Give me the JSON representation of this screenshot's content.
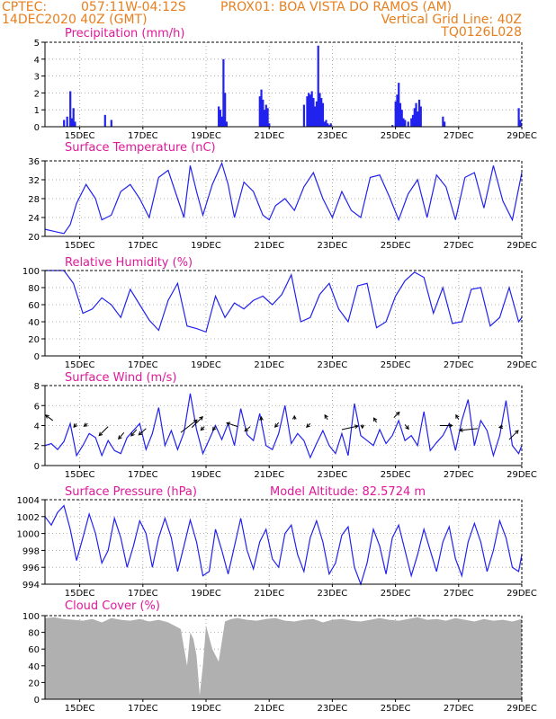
{
  "header": {
    "source": "CPTEC:",
    "coords": "057:11W-04:12S",
    "station": "PROX01: BOA VISTA DO RAMOS (AM)",
    "date": "14DEC2020 40Z (GMT)",
    "grid_note": "Vertical Grid Line: 40Z",
    "run_id": "TQ0126L028"
  },
  "colors": {
    "header": "#e87f1e",
    "title": "#e0189a",
    "line": "#2222ee",
    "bar": "#2222ee",
    "cloud": "#b0b0b0",
    "arrow": "#000000"
  },
  "chart_data": [
    {
      "type": "bar",
      "title": "Precipitation (mm/h)",
      "ylim": [
        0,
        5
      ],
      "yticks": [
        "0",
        "1",
        "2",
        "3",
        "4",
        "5"
      ],
      "x_tick_labels": [
        "15DEC",
        "17DEC",
        "19DEC",
        "21DEC",
        "23DEC",
        "25DEC",
        "27DEC",
        "29DEC"
      ],
      "x_tick_days": [
        15,
        17,
        19,
        21,
        23,
        25,
        27,
        29
      ],
      "x": [
        14.5,
        14.6,
        14.7,
        14.75,
        14.8,
        14.85,
        15.8,
        16.0,
        19.4,
        19.45,
        19.5,
        19.55,
        19.6,
        19.65,
        20.7,
        20.75,
        20.8,
        20.85,
        20.9,
        20.95,
        21.0,
        22.1,
        22.2,
        22.25,
        22.3,
        22.35,
        22.4,
        22.45,
        22.5,
        22.55,
        22.6,
        22.65,
        22.7,
        22.75,
        22.8,
        22.85,
        22.9,
        22.95,
        24.9,
        25.0,
        25.05,
        25.1,
        25.15,
        25.2,
        25.25,
        25.3,
        25.4,
        25.5,
        25.55,
        25.6,
        25.65,
        25.7,
        25.75,
        25.8,
        26.5,
        26.55,
        28.9,
        28.95
      ],
      "values": [
        0.4,
        0.6,
        2.1,
        0.5,
        1.1,
        0.3,
        0.7,
        0.4,
        1.2,
        1.0,
        0.6,
        4.0,
        2.0,
        0.3,
        1.8,
        2.2,
        1.6,
        1.0,
        1.3,
        1.1,
        0.2,
        1.3,
        1.8,
        2.0,
        1.9,
        2.1,
        1.7,
        1.2,
        1.5,
        4.8,
        2.0,
        1.7,
        1.4,
        0.3,
        0.4,
        0.2,
        0.1,
        0.2,
        0.1,
        1.5,
        1.9,
        2.6,
        1.4,
        1.0,
        0.5,
        0.4,
        0.3,
        0.5,
        0.7,
        1.1,
        1.4,
        0.9,
        1.6,
        1.2,
        0.6,
        0.3,
        1.1,
        0.4
      ]
    },
    {
      "type": "line",
      "title": "Surface Temperature (nC)",
      "ylim": [
        20,
        36
      ],
      "yticks": [
        "20",
        "24",
        "28",
        "32",
        "36"
      ],
      "x_tick_labels": [
        "15DEC",
        "17DEC",
        "19DEC",
        "21DEC",
        "23DEC",
        "25DEC",
        "27DEC",
        "29DEC"
      ],
      "x_tick_days": [
        15,
        17,
        19,
        21,
        23,
        25,
        27,
        29
      ],
      "x": [
        13.9,
        14.1,
        14.3,
        14.5,
        14.7,
        14.9,
        15.2,
        15.5,
        15.7,
        16.0,
        16.3,
        16.6,
        16.9,
        17.2,
        17.5,
        17.8,
        18.1,
        18.3,
        18.5,
        18.7,
        18.9,
        19.2,
        19.5,
        19.7,
        19.9,
        20.2,
        20.5,
        20.8,
        21.0,
        21.2,
        21.5,
        21.8,
        22.1,
        22.4,
        22.7,
        23.0,
        23.3,
        23.6,
        23.9,
        24.2,
        24.5,
        24.8,
        25.1,
        25.4,
        25.7,
        26.0,
        26.3,
        26.6,
        26.9,
        27.2,
        27.5,
        27.8,
        28.1,
        28.4,
        28.7,
        29.0
      ],
      "values": [
        21.5,
        21.2,
        20.9,
        20.6,
        22.5,
        27.0,
        31.0,
        28.0,
        23.5,
        24.5,
        29.5,
        31.0,
        28.0,
        24.0,
        32.5,
        34.0,
        28.0,
        24.0,
        35.0,
        29.5,
        24.5,
        31.0,
        35.5,
        31.0,
        24.0,
        31.5,
        29.5,
        24.5,
        23.5,
        26.5,
        28.0,
        25.5,
        30.5,
        33.5,
        28.0,
        24.0,
        29.5,
        25.5,
        24.0,
        32.5,
        33.0,
        28.5,
        23.5,
        29.0,
        32.0,
        24.0,
        33.0,
        30.5,
        23.5,
        32.5,
        33.5,
        26.0,
        35.0,
        27.5,
        23.5,
        33.5
      ]
    },
    {
      "type": "line",
      "title": "Relative Humidity (%)",
      "ylim": [
        0,
        100
      ],
      "yticks": [
        "0",
        "20",
        "40",
        "60",
        "80",
        "100"
      ],
      "x_tick_labels": [
        "15DEC",
        "17DEC",
        "19DEC",
        "21DEC",
        "23DEC",
        "25DEC",
        "27DEC",
        "29DEC"
      ],
      "x_tick_days": [
        15,
        17,
        19,
        21,
        23,
        25,
        27,
        29
      ],
      "x": [
        13.9,
        14.2,
        14.5,
        14.8,
        15.1,
        15.4,
        15.7,
        16.0,
        16.3,
        16.6,
        16.9,
        17.2,
        17.5,
        17.8,
        18.1,
        18.4,
        18.7,
        19.0,
        19.3,
        19.6,
        19.9,
        20.2,
        20.5,
        20.8,
        21.1,
        21.4,
        21.7,
        22.0,
        22.3,
        22.6,
        22.9,
        23.2,
        23.5,
        23.8,
        24.1,
        24.4,
        24.7,
        25.0,
        25.3,
        25.6,
        25.9,
        26.2,
        26.5,
        26.8,
        27.1,
        27.4,
        27.7,
        28.0,
        28.3,
        28.6,
        28.9,
        29.0
      ],
      "values": [
        100,
        100,
        100,
        85,
        50,
        55,
        68,
        60,
        45,
        78,
        60,
        42,
        30,
        65,
        85,
        35,
        32,
        28,
        70,
        45,
        62,
        55,
        65,
        70,
        60,
        72,
        95,
        40,
        45,
        72,
        85,
        55,
        40,
        82,
        85,
        33,
        40,
        70,
        88,
        98,
        92,
        50,
        80,
        38,
        40,
        78,
        80,
        35,
        45,
        80,
        40,
        45
      ]
    },
    {
      "type": "line",
      "title": "Surface Wind (m/s)",
      "ylim": [
        0,
        8
      ],
      "yticks": [
        "0",
        "2",
        "4",
        "6",
        "8"
      ],
      "x_tick_labels": [
        "15DEC",
        "17DEC",
        "19DEC",
        "21DEC",
        "23DEC",
        "25DEC",
        "27DEC",
        "29DEC"
      ],
      "x_tick_days": [
        15,
        17,
        19,
        21,
        23,
        25,
        27,
        29
      ],
      "x": [
        13.9,
        14.1,
        14.3,
        14.5,
        14.7,
        14.9,
        15.1,
        15.3,
        15.5,
        15.7,
        15.9,
        16.1,
        16.3,
        16.5,
        16.7,
        16.9,
        17.1,
        17.3,
        17.5,
        17.7,
        17.9,
        18.1,
        18.3,
        18.5,
        18.7,
        18.9,
        19.1,
        19.3,
        19.5,
        19.7,
        19.9,
        20.1,
        20.3,
        20.5,
        20.7,
        20.9,
        21.1,
        21.3,
        21.5,
        21.7,
        21.9,
        22.1,
        22.3,
        22.5,
        22.7,
        22.9,
        23.1,
        23.3,
        23.5,
        23.7,
        23.9,
        24.1,
        24.3,
        24.5,
        24.7,
        24.9,
        25.1,
        25.3,
        25.5,
        25.7,
        25.9,
        26.1,
        26.3,
        26.5,
        26.7,
        26.9,
        27.1,
        27.3,
        27.5,
        27.7,
        27.9,
        28.1,
        28.3,
        28.5,
        28.7,
        28.9,
        29.0
      ],
      "values": [
        2.0,
        2.2,
        1.6,
        2.4,
        4.2,
        1.0,
        2.0,
        3.2,
        2.8,
        1.0,
        2.5,
        1.5,
        1.2,
        2.8,
        3.5,
        4.2,
        1.6,
        3.2,
        5.8,
        2.0,
        3.5,
        1.6,
        3.3,
        7.2,
        3.6,
        1.2,
        2.6,
        4.0,
        2.6,
        4.2,
        2.0,
        5.7,
        3.1,
        2.5,
        5.2,
        2.0,
        1.6,
        3.2,
        6.0,
        2.2,
        3.2,
        2.5,
        0.8,
        2.2,
        3.5,
        2.0,
        1.2,
        3.2,
        1.0,
        6.2,
        3.0,
        2.5,
        2.0,
        3.6,
        2.2,
        3.0,
        4.5,
        2.5,
        3.0,
        2.0,
        5.4,
        1.5,
        2.3,
        3.0,
        4.2,
        1.5,
        4.5,
        6.6,
        2.0,
        4.5,
        3.5,
        1.0,
        3.0,
        6.5,
        2.0,
        1.2,
        2.0
      ]
    },
    {
      "type": "line",
      "title": "Surface Pressure (hPa)",
      "subtitle": "Model Altitude: 82.5724 m",
      "ylim": [
        994,
        1004
      ],
      "yticks": [
        "994",
        "996",
        "998",
        "1000",
        "1002",
        "1004"
      ],
      "x_tick_labels": [
        "15DEC",
        "17DEC",
        "19DEC",
        "21DEC",
        "23DEC",
        "25DEC",
        "27DEC",
        "29DEC"
      ],
      "x_tick_days": [
        15,
        17,
        19,
        21,
        23,
        25,
        27,
        29
      ],
      "x": [
        13.9,
        14.1,
        14.3,
        14.5,
        14.7,
        14.9,
        15.1,
        15.3,
        15.5,
        15.7,
        15.9,
        16.1,
        16.3,
        16.5,
        16.7,
        16.9,
        17.1,
        17.3,
        17.5,
        17.7,
        17.9,
        18.1,
        18.3,
        18.5,
        18.7,
        18.9,
        19.1,
        19.3,
        19.5,
        19.7,
        19.9,
        20.1,
        20.3,
        20.5,
        20.7,
        20.9,
        21.1,
        21.3,
        21.5,
        21.7,
        21.9,
        22.1,
        22.3,
        22.5,
        22.7,
        22.9,
        23.1,
        23.3,
        23.5,
        23.7,
        23.9,
        24.1,
        24.3,
        24.5,
        24.7,
        24.9,
        25.1,
        25.3,
        25.5,
        25.7,
        25.9,
        26.1,
        26.3,
        26.5,
        26.7,
        26.9,
        27.1,
        27.3,
        27.5,
        27.7,
        27.9,
        28.1,
        28.3,
        28.5,
        28.7,
        28.9,
        29.0
      ],
      "values": [
        1002.0,
        1001.0,
        1002.5,
        1003.3,
        1000.5,
        996.8,
        999.5,
        1002.3,
        1000.0,
        996.5,
        998.0,
        1001.8,
        999.5,
        996.0,
        998.5,
        1001.5,
        1000.0,
        996.0,
        999.5,
        1001.8,
        999.5,
        995.5,
        998.5,
        1001.6,
        999.0,
        995.0,
        995.5,
        1000.5,
        998.0,
        995.2,
        998.5,
        1001.8,
        998.0,
        995.8,
        999.0,
        1000.5,
        997.0,
        996.0,
        1000.0,
        1001.0,
        997.5,
        995.5,
        999.5,
        1001.5,
        999.0,
        995.2,
        996.5,
        999.8,
        1000.8,
        996.0,
        993.8,
        996.5,
        1000.5,
        998.5,
        995.2,
        999.5,
        1001.0,
        998.0,
        995.0,
        997.5,
        1000.5,
        998.0,
        995.5,
        999.0,
        1000.8,
        997.0,
        995.0,
        999.0,
        1001.2,
        999.0,
        995.5,
        998.0,
        1001.5,
        999.5,
        996.0,
        995.5,
        997.5
      ]
    },
    {
      "type": "area",
      "title": "Cloud Cover (%)",
      "ylim": [
        0,
        100
      ],
      "yticks": [
        "0",
        "20",
        "40",
        "60",
        "80",
        "100"
      ],
      "x_tick_labels": [
        "15DEC",
        "17DEC",
        "19DEC",
        "21DEC",
        "23DEC",
        "25DEC",
        "27DEC",
        "29DEC"
      ],
      "x_tick_days": [
        15,
        17,
        19,
        21,
        23,
        25,
        27,
        29
      ],
      "x": [
        13.9,
        14.2,
        14.5,
        14.8,
        15.1,
        15.4,
        15.7,
        16.0,
        16.3,
        16.6,
        16.9,
        17.2,
        17.5,
        17.8,
        18.0,
        18.2,
        18.4,
        18.5,
        18.6,
        18.7,
        18.8,
        18.9,
        19.0,
        19.2,
        19.4,
        19.6,
        19.8,
        20.0,
        20.3,
        20.6,
        20.9,
        21.2,
        21.5,
        21.8,
        22.1,
        22.4,
        22.7,
        23.0,
        23.3,
        23.6,
        23.9,
        24.2,
        24.5,
        24.8,
        25.1,
        25.4,
        25.7,
        26.0,
        26.3,
        26.6,
        26.9,
        27.2,
        27.5,
        27.8,
        28.1,
        28.4,
        28.7,
        29.0
      ],
      "values": [
        97,
        98,
        96,
        95,
        94,
        96,
        92,
        97,
        95,
        94,
        96,
        93,
        95,
        92,
        88,
        84,
        40,
        80,
        72,
        52,
        5,
        40,
        88,
        60,
        45,
        93,
        96,
        97,
        95,
        94,
        96,
        97,
        94,
        93,
        95,
        96,
        92,
        95,
        96,
        94,
        93,
        95,
        97,
        95,
        94,
        96,
        98,
        95,
        96,
        94,
        97,
        95,
        93,
        96,
        94,
        95,
        93,
        96
      ]
    }
  ],
  "wind_vectors": [
    {
      "x": 14.15,
      "y": 4.5,
      "dx": -8,
      "dy": -6
    },
    {
      "x": 14.9,
      "y": 4.2,
      "dx": -3,
      "dy": 4
    },
    {
      "x": 15.25,
      "y": 4.2,
      "dx": -4,
      "dy": 3
    },
    {
      "x": 15.9,
      "y": 3.9,
      "dx": -10,
      "dy": 10
    },
    {
      "x": 16.4,
      "y": 3.3,
      "dx": -6,
      "dy": 7
    },
    {
      "x": 16.8,
      "y": 3.6,
      "dx": -6,
      "dy": 7
    },
    {
      "x": 17.1,
      "y": 3.7,
      "dx": -8,
      "dy": 7
    },
    {
      "x": 18.2,
      "y": 3.3,
      "dx": 18,
      "dy": -14
    },
    {
      "x": 18.55,
      "y": 3.8,
      "dx": 12,
      "dy": -12
    },
    {
      "x": 18.95,
      "y": 3.9,
      "dx": -4,
      "dy": 4
    },
    {
      "x": 19.3,
      "y": 3.9,
      "dx": -3,
      "dy": 4
    },
    {
      "x": 20.0,
      "y": 3.9,
      "dx": -12,
      "dy": -4
    },
    {
      "x": 20.4,
      "y": 3.9,
      "dx": -6,
      "dy": 5
    },
    {
      "x": 20.75,
      "y": 4.5,
      "dx": 0,
      "dy": -4
    },
    {
      "x": 21.3,
      "y": 4.3,
      "dx": -4,
      "dy": 5
    },
    {
      "x": 21.8,
      "y": 4.6,
      "dx": 0,
      "dy": -4
    },
    {
      "x": 22.3,
      "y": 4.2,
      "dx": -4,
      "dy": 4
    },
    {
      "x": 22.85,
      "y": 4.6,
      "dx": -3,
      "dy": -5
    },
    {
      "x": 23.3,
      "y": 3.6,
      "dx": 18,
      "dy": -4
    },
    {
      "x": 23.95,
      "y": 4.1,
      "dx": 0,
      "dy": 4
    },
    {
      "x": 24.4,
      "y": 4.3,
      "dx": -3,
      "dy": -5
    },
    {
      "x": 24.95,
      "y": 4.8,
      "dx": 6,
      "dy": -6
    },
    {
      "x": 25.3,
      "y": 4.1,
      "dx": 4,
      "dy": 5
    },
    {
      "x": 26.4,
      "y": 4.0,
      "dx": 14,
      "dy": 0
    },
    {
      "x": 27.0,
      "y": 4.6,
      "dx": -3,
      "dy": -5
    },
    {
      "x": 27.6,
      "y": 3.7,
      "dx": -20,
      "dy": 2
    },
    {
      "x": 28.6,
      "y": 2.6,
      "dx": 10,
      "dy": -10
    },
    {
      "x": 28.4,
      "y": 3.9,
      "dx": -4,
      "dy": 1
    }
  ]
}
